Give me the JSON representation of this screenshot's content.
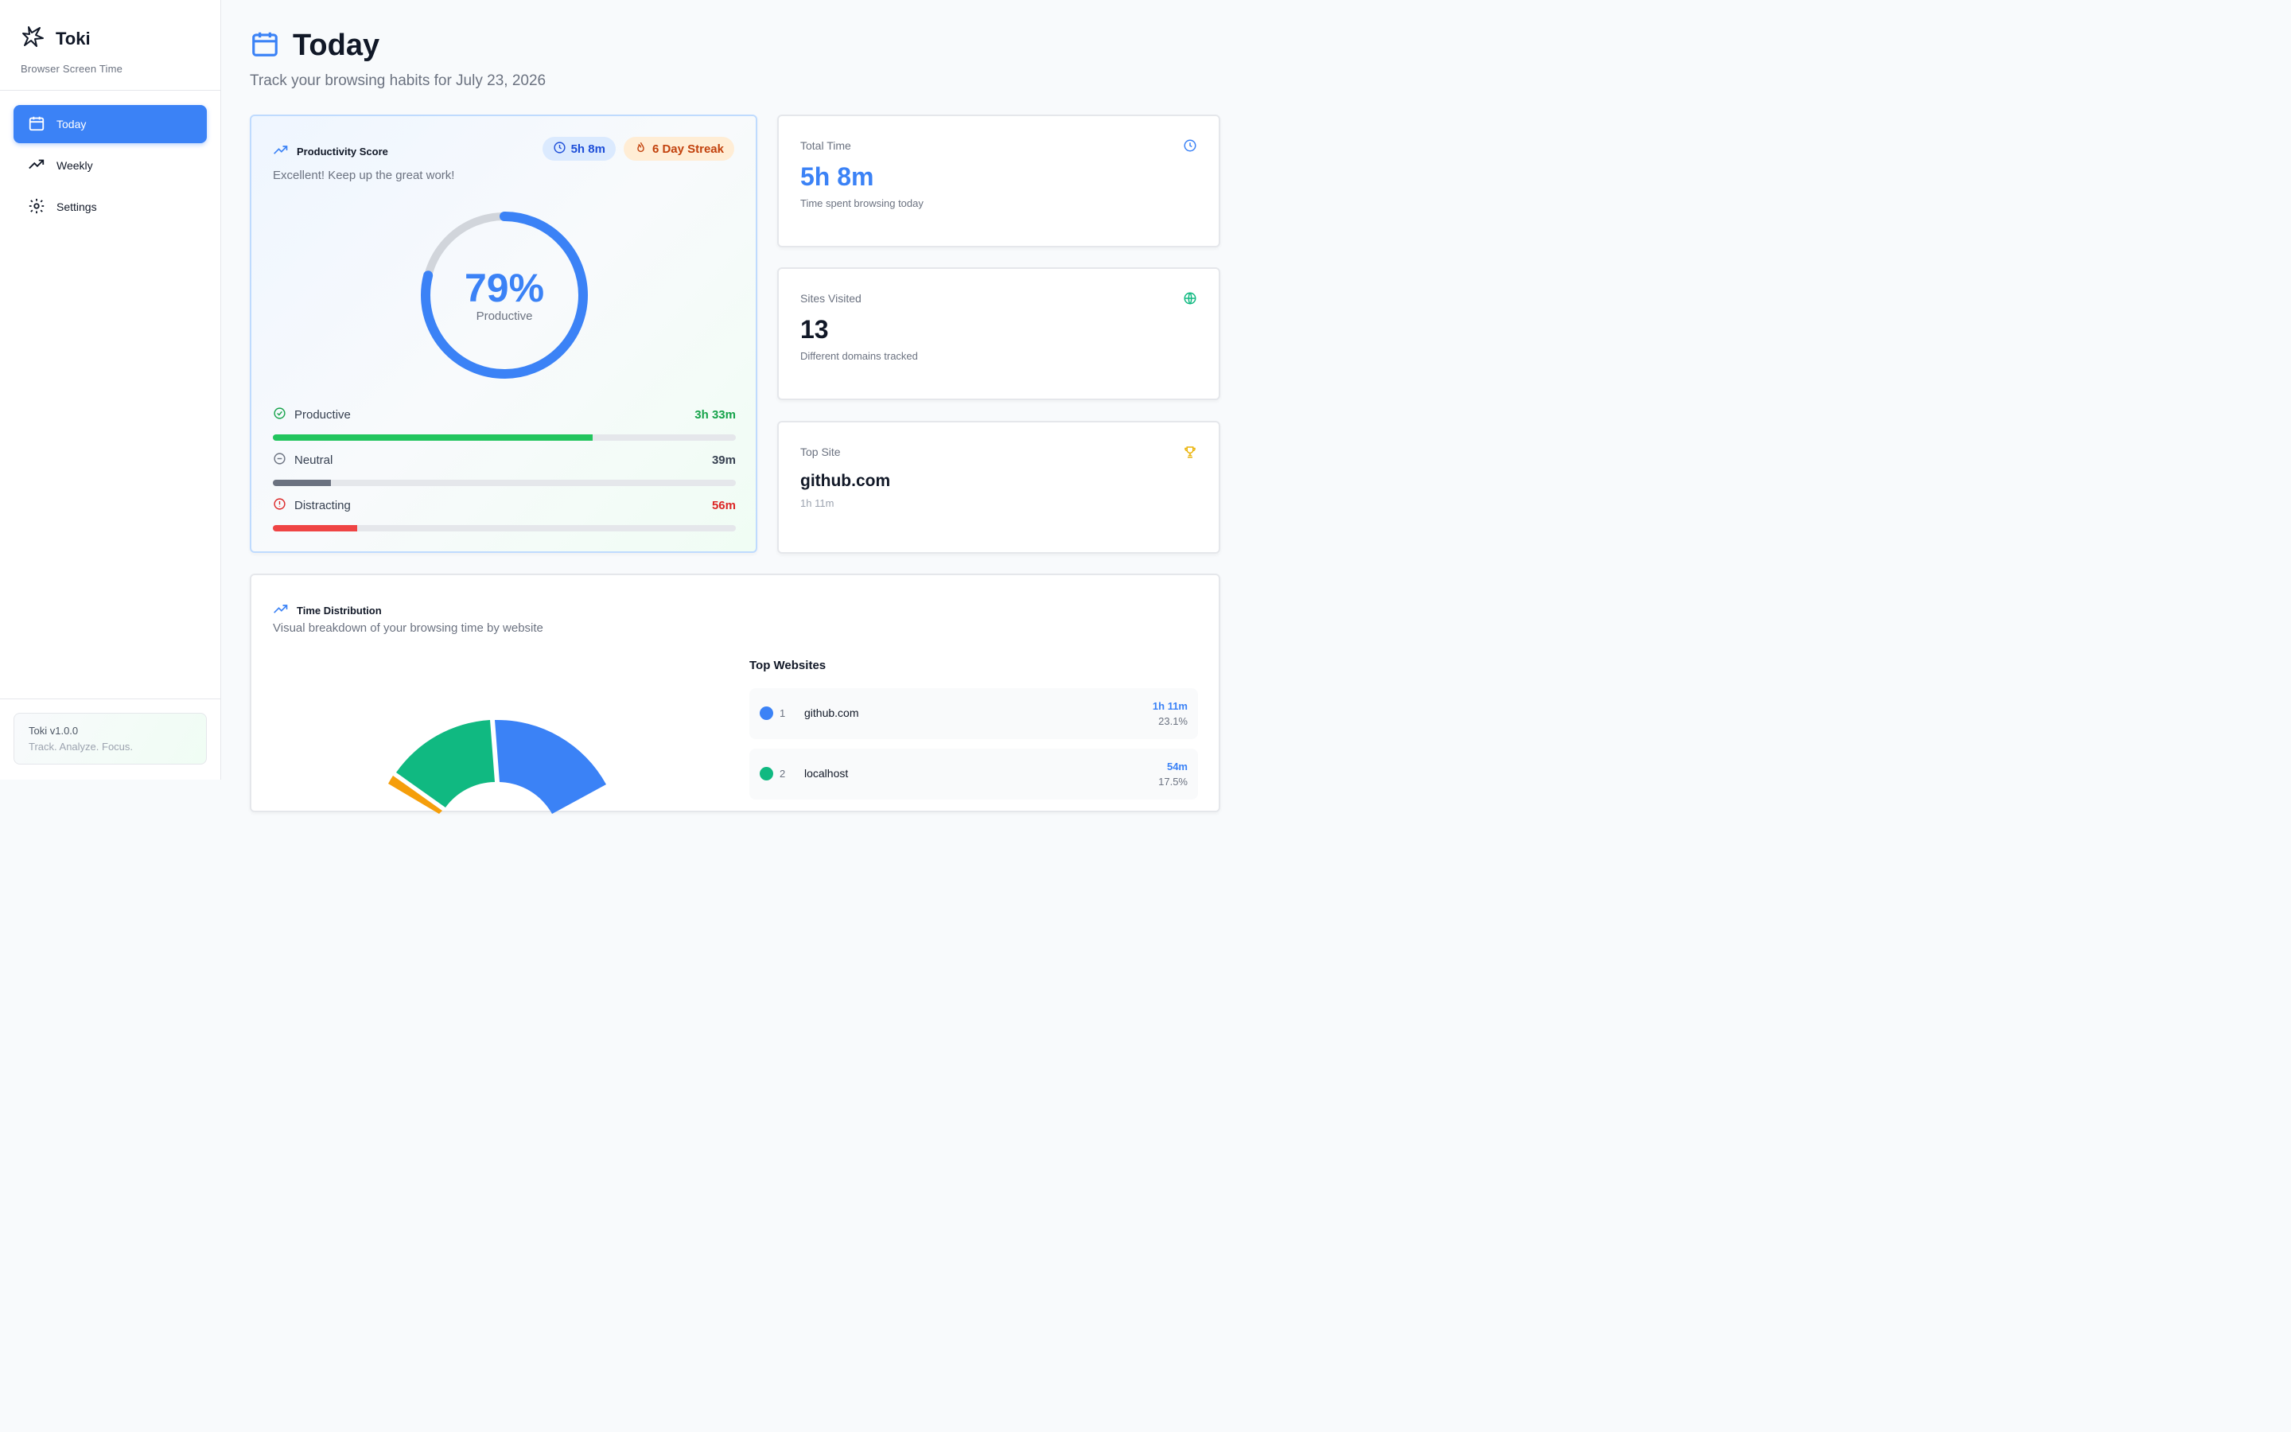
{
  "brand": {
    "name": "Toki",
    "subtitle": "Browser Screen Time"
  },
  "nav": [
    {
      "label": "Today",
      "icon": "calendar-icon",
      "active": true
    },
    {
      "label": "Weekly",
      "icon": "trending-up-icon",
      "active": false
    },
    {
      "label": "Settings",
      "icon": "gear-icon",
      "active": false
    }
  ],
  "footer": {
    "version": "Toki v1.0.0",
    "tagline": "Track. Analyze. Focus."
  },
  "header": {
    "title": "Today",
    "subtitle": "Track your browsing habits for July 23, 2026"
  },
  "score": {
    "title": "Productivity Score",
    "message": "Excellent! Keep up the great work!",
    "total_badge": "5h 8m",
    "streak_badge": "6 Day Streak",
    "percent": "79%",
    "percent_value": 0.79,
    "label": "Productive",
    "categories": [
      {
        "name": "Productive",
        "time": "3h 33m",
        "fraction": 0.69,
        "color": "#16a34a",
        "bar_color": "#22c55e"
      },
      {
        "name": "Neutral",
        "time": "39m",
        "fraction": 0.126,
        "color": "#374151",
        "bar_color": "#6b7280"
      },
      {
        "name": "Distracting",
        "time": "56m",
        "fraction": 0.182,
        "color": "#dc2626",
        "bar_color": "#ef4444"
      }
    ]
  },
  "stats": {
    "total": {
      "label": "Total Time",
      "value": "5h 8m",
      "note": "Time spent browsing today",
      "color": "#3b82f6"
    },
    "sites": {
      "label": "Sites Visited",
      "value": "13",
      "note": "Different domains tracked",
      "color": "#10b981"
    },
    "top": {
      "label": "Top Site",
      "value": "github.com",
      "note": "1h 11m",
      "color": "#eab308"
    }
  },
  "distribution": {
    "title": "Time Distribution",
    "subtitle": "Visual breakdown of your browsing time by website",
    "top_title": "Top Websites",
    "sites": [
      {
        "rank": "1",
        "name": "github.com",
        "time": "1h 11m",
        "percent": "23.1%",
        "color": "#3b82f6"
      },
      {
        "rank": "2",
        "name": "localhost",
        "time": "54m",
        "percent": "17.5%",
        "color": "#10b981"
      }
    ]
  }
}
